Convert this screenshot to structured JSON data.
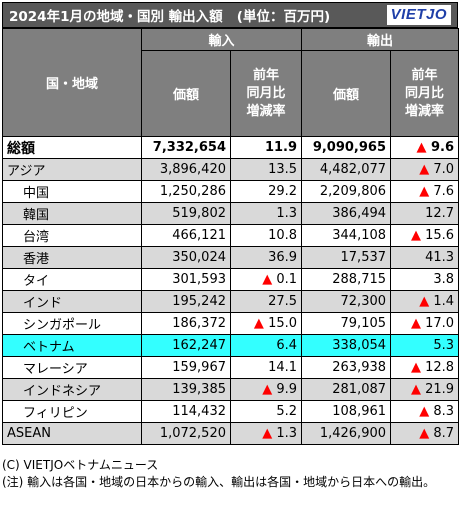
{
  "title": "2024年1月の地域・国別 輸出入額",
  "unit": "(単位：百万円)",
  "logo": "VIETJO",
  "header": {
    "region": "国・地域",
    "import": "輸入",
    "export": "輸出",
    "amount": "価額",
    "yoy_line1": "前年",
    "yoy_line2": "同月比",
    "yoy_line3": "増減率"
  },
  "rows": [
    {
      "name": "総額",
      "imp": "7,332,654",
      "imp_tri": "",
      "imp_chg": "11.9",
      "exp": "9,090,965",
      "exp_tri": "▲",
      "exp_chg": "9.6"
    },
    {
      "name": "アジア",
      "imp": "3,896,420",
      "imp_tri": "",
      "imp_chg": "13.5",
      "exp": "4,482,077",
      "exp_tri": "▲",
      "exp_chg": "7.0"
    },
    {
      "name": "中国",
      "imp": "1,250,286",
      "imp_tri": "",
      "imp_chg": "29.2",
      "exp": "2,209,806",
      "exp_tri": "▲",
      "exp_chg": "7.6"
    },
    {
      "name": "韓国",
      "imp": "519,802",
      "imp_tri": "",
      "imp_chg": "1.3",
      "exp": "386,494",
      "exp_tri": "",
      "exp_chg": "12.7"
    },
    {
      "name": "台湾",
      "imp": "466,121",
      "imp_tri": "",
      "imp_chg": "10.8",
      "exp": "344,108",
      "exp_tri": "▲",
      "exp_chg": "15.6"
    },
    {
      "name": "香港",
      "imp": "350,024",
      "imp_tri": "",
      "imp_chg": "36.9",
      "exp": "17,537",
      "exp_tri": "",
      "exp_chg": "41.3"
    },
    {
      "name": "タイ",
      "imp": "301,593",
      "imp_tri": "▲",
      "imp_chg": "0.1",
      "exp": "288,715",
      "exp_tri": "",
      "exp_chg": "3.8"
    },
    {
      "name": "インド",
      "imp": "195,242",
      "imp_tri": "",
      "imp_chg": "27.5",
      "exp": "72,300",
      "exp_tri": "▲",
      "exp_chg": "1.4"
    },
    {
      "name": "シンガポール",
      "imp": "186,372",
      "imp_tri": "▲",
      "imp_chg": "15.0",
      "exp": "79,105",
      "exp_tri": "▲",
      "exp_chg": "17.0"
    },
    {
      "name": "ベトナム",
      "imp": "162,247",
      "imp_tri": "",
      "imp_chg": "6.4",
      "exp": "338,054",
      "exp_tri": "",
      "exp_chg": "5.3"
    },
    {
      "name": "マレーシア",
      "imp": "159,967",
      "imp_tri": "",
      "imp_chg": "14.1",
      "exp": "263,938",
      "exp_tri": "▲",
      "exp_chg": "12.8"
    },
    {
      "name": "インドネシア",
      "imp": "139,385",
      "imp_tri": "▲",
      "imp_chg": "9.9",
      "exp": "281,087",
      "exp_tri": "▲",
      "exp_chg": "21.9"
    },
    {
      "name": "フィリピン",
      "imp": "114,432",
      "imp_tri": "",
      "imp_chg": "5.2",
      "exp": "108,961",
      "exp_tri": "▲",
      "exp_chg": "8.3"
    },
    {
      "name": "ASEAN",
      "imp": "1,072,520",
      "imp_tri": "▲",
      "imp_chg": "1.3",
      "exp": "1,426,900",
      "exp_tri": "▲",
      "exp_chg": "8.7"
    }
  ],
  "footer": {
    "credit": "(C) VIETJOベトナムニュース",
    "note": "(注) 輸入は各国・地域の日本からの輸入、輸出は各国・地域から日本への輸出。"
  },
  "colors": {
    "header_bg": "#7f7f7f",
    "title_bg": "#595959",
    "region_bg": "#d9d9d9",
    "highlight_bg": "#33ffff",
    "negative": "#ff0000",
    "logo": "#1f3fa8"
  }
}
